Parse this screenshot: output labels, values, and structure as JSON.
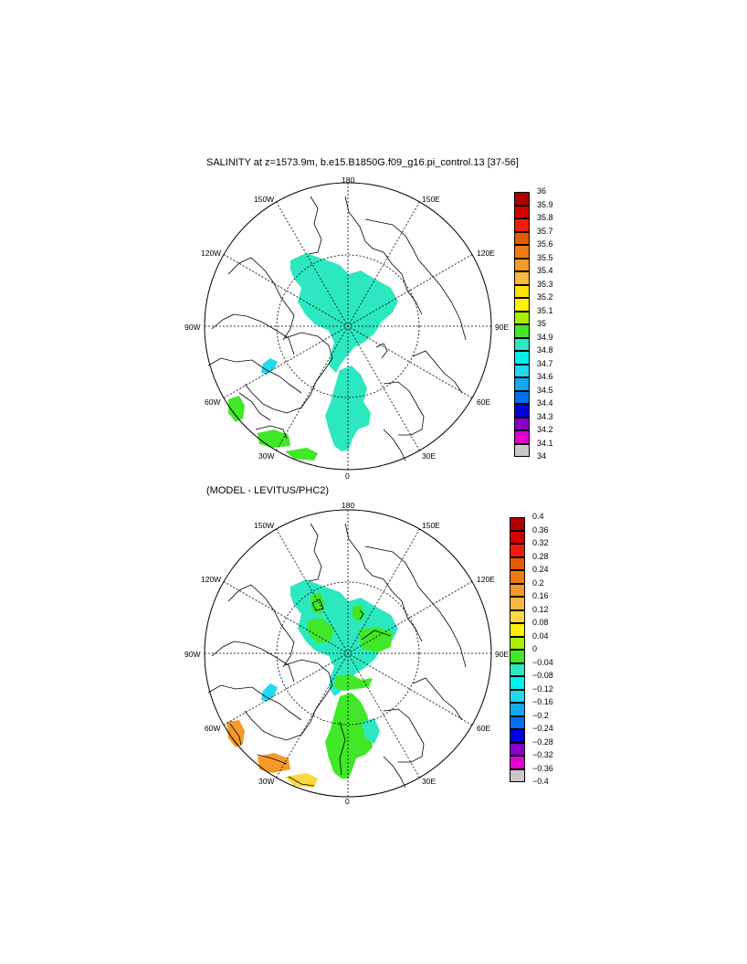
{
  "panels": [
    {
      "title": "SALINITY at z=1573.9m, b.e15.B1850G.f09_g16.pi_control.13 [37-56]",
      "longitude_labels": [
        "180",
        "150E",
        "120E",
        "90E",
        "60E",
        "30E",
        "0",
        "30W",
        "60W",
        "90W",
        "120W",
        "150W"
      ],
      "colorbar_labels": [
        "36",
        "35.9",
        "35.8",
        "35.7",
        "35.6",
        "35.5",
        "35.4",
        "35.3",
        "35.2",
        "35.1",
        "35",
        "34.9",
        "34.8",
        "34.7",
        "34.6",
        "34.5",
        "34.4",
        "34.3",
        "34.2",
        "34.1",
        "34"
      ],
      "colorbar_colors": [
        "#b00000",
        "#d40000",
        "#f21a0a",
        "#e85a00",
        "#f07a10",
        "#f59a2a",
        "#fbb840",
        "#fde000",
        "#fff200",
        "#a8f000",
        "#40e828",
        "#2ce8c0",
        "#00f0e8",
        "#20d8f0",
        "#10a8f0",
        "#0070f0",
        "#0000e0",
        "#8800c8",
        "#e000d0",
        "#c8c8c8",
        "#707070"
      ]
    },
    {
      "title": "(MODEL - LEVITUS/PHC2)",
      "longitude_labels": [
        "180",
        "150E",
        "120E",
        "90E",
        "60E",
        "30E",
        "0",
        "30W",
        "60W",
        "90W",
        "120W",
        "150W"
      ],
      "colorbar_labels": [
        "0.4",
        "0.36",
        "0.32",
        "0.28",
        "0.24",
        "0.2",
        "0.16",
        "0.12",
        "0.08",
        "0.04",
        "0",
        "−0.04",
        "−0.08",
        "−0.12",
        "−0.16",
        "−0.2",
        "−0.24",
        "−0.28",
        "−0.32",
        "−0.36",
        "−0.4"
      ],
      "colorbar_colors": [
        "#b00000",
        "#d40000",
        "#f21a0a",
        "#e85a00",
        "#f07a10",
        "#f59a2a",
        "#fbb840",
        "#fdd840",
        "#fff200",
        "#a8f000",
        "#40e828",
        "#2ce8c0",
        "#00f0e8",
        "#20d8f0",
        "#10a8f0",
        "#0070f0",
        "#0000e0",
        "#8800c8",
        "#e000d0",
        "#c8c8c8",
        "#707070"
      ]
    }
  ],
  "legend_colors": {
    "cyan_fill": "#2ce8c0",
    "green_fill": "#40e828",
    "light_blue_fill": "#20d8f0",
    "orange_fill": "#f59a2a",
    "yellow_fill": "#fdd840"
  }
}
